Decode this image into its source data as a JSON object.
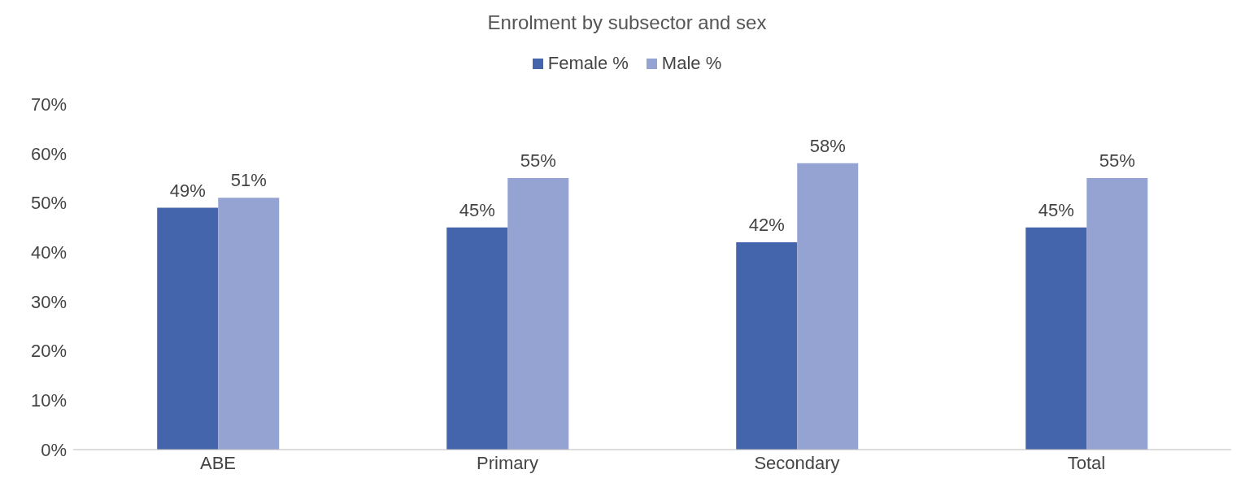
{
  "chart_data": {
    "type": "bar",
    "title": "Enrolment by subsector and sex",
    "categories": [
      "ABE",
      "Primary",
      "Secondary",
      "Total"
    ],
    "series": [
      {
        "name": "Female %",
        "color": "#4464ab",
        "values": [
          49,
          45,
          42,
          45
        ],
        "value_labels": [
          "49%",
          "45%",
          "42%",
          "45%"
        ]
      },
      {
        "name": "Male %",
        "color": "#95a3d3",
        "values": [
          51,
          55,
          58,
          55
        ],
        "value_labels": [
          "51%",
          "55%",
          "58%",
          "55%"
        ]
      }
    ],
    "ylim": [
      0,
      70
    ],
    "yticks": [
      {
        "value": 0,
        "label": "0%"
      },
      {
        "value": 10,
        "label": "10%"
      },
      {
        "value": 20,
        "label": "20%"
      },
      {
        "value": 30,
        "label": "30%"
      },
      {
        "value": 40,
        "label": "40%"
      },
      {
        "value": 50,
        "label": "50%"
      },
      {
        "value": 60,
        "label": "60%"
      },
      {
        "value": 70,
        "label": "70%"
      }
    ],
    "grid": false,
    "legend": "top"
  }
}
